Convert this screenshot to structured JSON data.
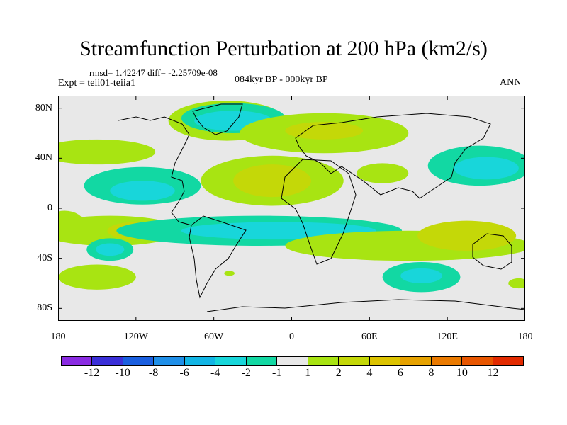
{
  "title": "Streamfunction Perturbation at 200 hPa (km2/s)",
  "stats": "rmsd= 1.42247 diff= -2.25709e-08",
  "experiment": "Expt = teii01-teiia1",
  "period": "084kyr BP - 000kyr BP",
  "season": "ANN",
  "map": {
    "projection": "cylindrical equidistant",
    "lon_range": [
      -180,
      180
    ],
    "lat_range": [
      -90,
      90
    ],
    "lon_ticks": [
      {
        "value": -180,
        "label": "180"
      },
      {
        "value": -120,
        "label": "120W"
      },
      {
        "value": -60,
        "label": "60W"
      },
      {
        "value": 0,
        "label": "0"
      },
      {
        "value": 60,
        "label": "60E"
      },
      {
        "value": 120,
        "label": "120E"
      },
      {
        "value": 180,
        "label": "180"
      }
    ],
    "lat_ticks": [
      {
        "value": 80,
        "label": "80N"
      },
      {
        "value": 40,
        "label": "40N"
      },
      {
        "value": 0,
        "label": "0"
      },
      {
        "value": -40,
        "label": "40S"
      },
      {
        "value": -80,
        "label": "80S"
      }
    ],
    "background_color": "#e8e8e8",
    "coastline_color": "#000000"
  },
  "colorbar": {
    "colors": [
      "#8a2be2",
      "#3a2fd8",
      "#1a5fe0",
      "#1f8fe8",
      "#12b5e5",
      "#18d6da",
      "#12d8a3",
      "#e8e8e8",
      "#a8e412",
      "#c4d808",
      "#dcc300",
      "#e6a200",
      "#ea7a00",
      "#e85600",
      "#e22a00"
    ],
    "labels": [
      "-12",
      "-10",
      "-8",
      "-6",
      "-4",
      "-2",
      "-1",
      "1",
      "2",
      "4",
      "6",
      "8",
      "10",
      "12"
    ]
  },
  "anomalies": [
    {
      "lon": -50,
      "lat": 70,
      "rx": 45,
      "ry": 16,
      "color": "#a8e412"
    },
    {
      "lon": -45,
      "lat": 72,
      "rx": 40,
      "ry": 12,
      "color": "#12d8a3"
    },
    {
      "lon": -45,
      "lat": 70,
      "rx": 30,
      "ry": 8,
      "color": "#18d6da"
    },
    {
      "lon": -150,
      "lat": 45,
      "rx": 45,
      "ry": 10,
      "color": "#a8e412"
    },
    {
      "lon": 25,
      "lat": 60,
      "rx": 65,
      "ry": 16,
      "color": "#a8e412"
    },
    {
      "lon": 25,
      "lat": 62,
      "rx": 30,
      "ry": 7,
      "color": "#c4d808"
    },
    {
      "lon": -15,
      "lat": 22,
      "rx": 55,
      "ry": 20,
      "color": "#a8e412"
    },
    {
      "lon": -15,
      "lat": 22,
      "rx": 30,
      "ry": 13,
      "color": "#c4d808"
    },
    {
      "lon": -115,
      "lat": 18,
      "rx": 45,
      "ry": 15,
      "color": "#12d8a3"
    },
    {
      "lon": -115,
      "lat": 14,
      "rx": 25,
      "ry": 8,
      "color": "#18d6da"
    },
    {
      "lon": 145,
      "lat": 34,
      "rx": 40,
      "ry": 16,
      "color": "#12d8a3"
    },
    {
      "lon": 150,
      "lat": 32,
      "rx": 25,
      "ry": 9,
      "color": "#18d6da"
    },
    {
      "lon": 70,
      "lat": 28,
      "rx": 20,
      "ry": 8,
      "color": "#a8e412"
    },
    {
      "lon": -140,
      "lat": -18,
      "rx": 55,
      "ry": 12,
      "color": "#a8e412"
    },
    {
      "lon": -120,
      "lat": -18,
      "rx": 22,
      "ry": 7,
      "color": "#c4d808"
    },
    {
      "lon": -115,
      "lat": -18,
      "rx": 8,
      "ry": 3,
      "color": "#e6a200"
    },
    {
      "lon": -175,
      "lat": -12,
      "rx": 15,
      "ry": 10,
      "color": "#a8e412"
    },
    {
      "lon": -25,
      "lat": -18,
      "rx": 110,
      "ry": 12,
      "color": "#12d8a3"
    },
    {
      "lon": -10,
      "lat": -18,
      "rx": 75,
      "ry": 7,
      "color": "#18d6da"
    },
    {
      "lon": 90,
      "lat": -30,
      "rx": 95,
      "ry": 12,
      "color": "#a8e412"
    },
    {
      "lon": 135,
      "lat": -22,
      "rx": 38,
      "ry": 12,
      "color": "#c4d808"
    },
    {
      "lon": -140,
      "lat": -33,
      "rx": 18,
      "ry": 9,
      "color": "#12d8a3"
    },
    {
      "lon": -140,
      "lat": -33,
      "rx": 11,
      "ry": 5,
      "color": "#18d6da"
    },
    {
      "lon": -150,
      "lat": -55,
      "rx": 30,
      "ry": 10,
      "color": "#a8e412"
    },
    {
      "lon": 100,
      "lat": -55,
      "rx": 30,
      "ry": 12,
      "color": "#12d8a3"
    },
    {
      "lon": 100,
      "lat": -54,
      "rx": 16,
      "ry": 6,
      "color": "#18d6da"
    },
    {
      "lon": 175,
      "lat": -60,
      "rx": 8,
      "ry": 4,
      "color": "#a8e412"
    },
    {
      "lon": -48,
      "lat": -52,
      "rx": 4,
      "ry": 2,
      "color": "#a8e412"
    }
  ]
}
